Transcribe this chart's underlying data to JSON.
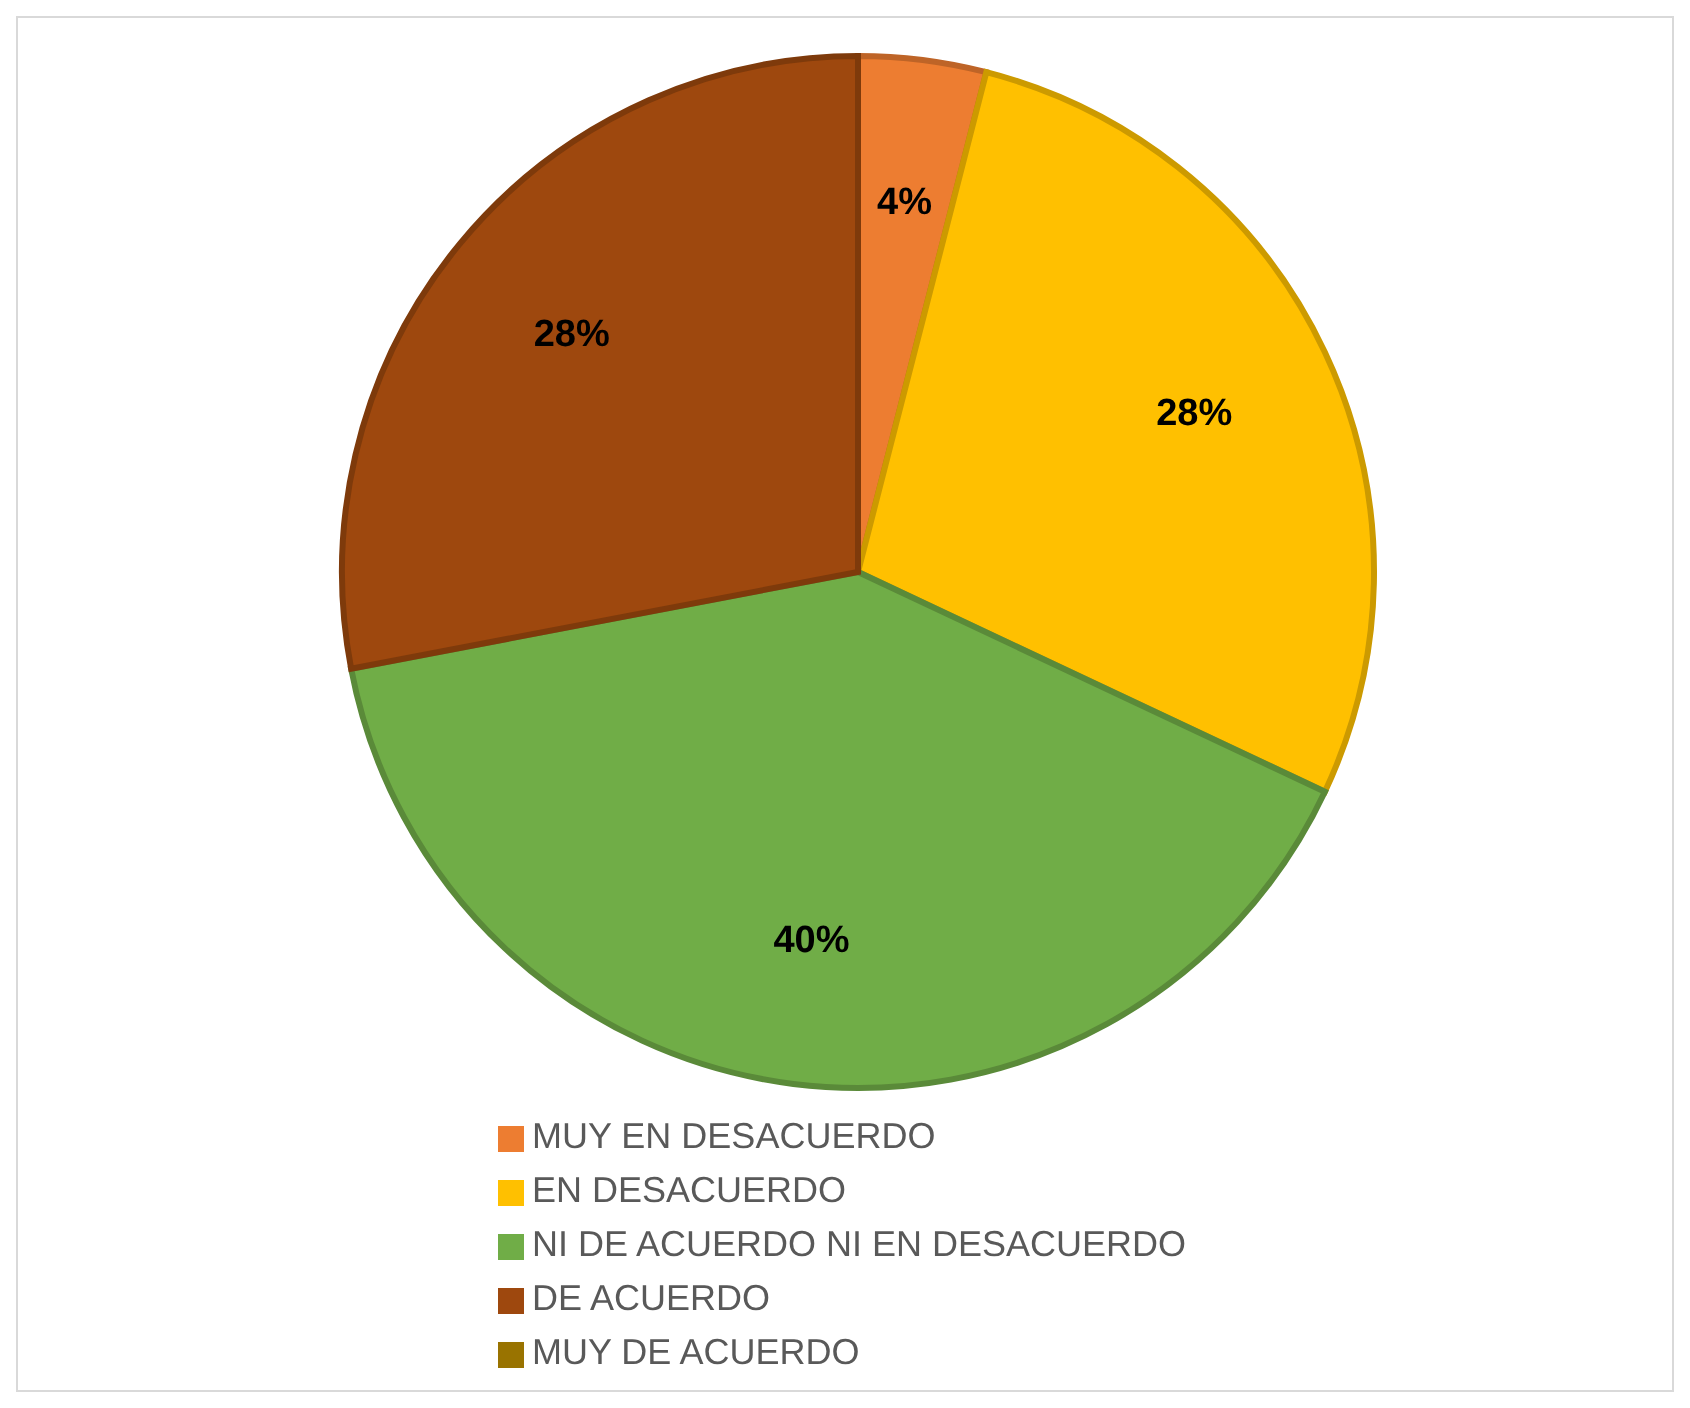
{
  "chart_data": {
    "type": "pie",
    "categories": [
      "MUY EN DESACUERDO",
      "EN DESACUERDO",
      "NI DE ACUERDO NI EN DESACUERDO",
      "DE ACUERDO",
      "MUY DE ACUERDO"
    ],
    "values": [
      4,
      28,
      40,
      28,
      0
    ],
    "colors": [
      "#ed7d31",
      "#ffc000",
      "#70ad47",
      "#9e480e",
      "#997300"
    ],
    "value_labels": [
      "4%",
      "28%",
      "40%",
      "28%",
      null
    ],
    "legend": "bottom"
  }
}
